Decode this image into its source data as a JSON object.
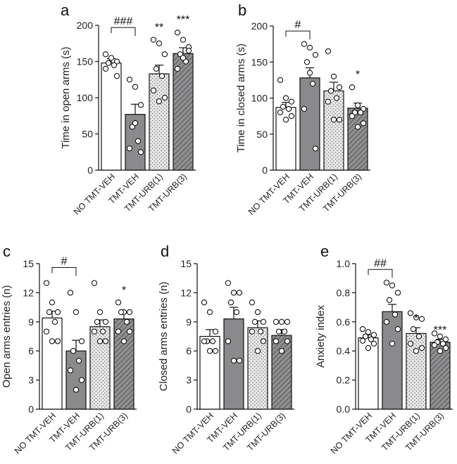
{
  "colors": {
    "open": "#ffffff",
    "gray": "#8a8a8c",
    "dotted": "#e6e6e6",
    "hatched": "#8f8f91",
    "ink": "#111111"
  },
  "chart_data": [
    {
      "type": "bar",
      "panel": "a",
      "ylabel": "Time in open arms (s)",
      "categories": [
        "NO TMT-VEH",
        "TMT-VEH",
        "TMT-URB(1)",
        "TMT-URB(3)"
      ],
      "values": [
        148,
        77,
        133,
        161
      ],
      "errors": [
        6,
        14,
        12,
        8
      ],
      "points": [
        [
          160,
          155,
          150,
          148,
          145,
          140,
          130
        ],
        [
          125,
          115,
          90,
          60,
          40,
          30,
          25,
          65
        ],
        [
          180,
          175,
          160,
          140,
          130,
          110,
          100,
          95
        ],
        [
          190,
          180,
          170,
          160,
          150,
          140,
          165,
          155
        ]
      ],
      "ylim": [
        0,
        200
      ],
      "yticks": [
        0,
        50,
        100,
        150,
        200
      ],
      "significance": [
        {
          "text": "###",
          "type": "bracket",
          "from": 0,
          "to": 1,
          "y": 197
        },
        {
          "text": "**",
          "bar": 2,
          "y": 192
        },
        {
          "text": "***",
          "bar": 3,
          "y": 203
        }
      ]
    },
    {
      "type": "bar",
      "panel": "b",
      "ylabel": "Time in closed arms (s)",
      "categories": [
        "NO TMT-VEH",
        "TMT-VEH",
        "TMT-URB(1)",
        "TMT-URB(3)"
      ],
      "values": [
        87,
        128,
        110,
        86
      ],
      "errors": [
        7,
        14,
        12,
        7
      ],
      "points": [
        [
          125,
          100,
          95,
          88,
          85,
          80,
          75,
          70
        ],
        [
          175,
          170,
          160,
          150,
          120,
          85,
          30,
          135
        ],
        [
          165,
          130,
          115,
          110,
          100,
          95,
          70,
          70
        ],
        [
          115,
          90,
          85,
          80,
          80,
          75,
          65,
          60
        ]
      ],
      "ylim": [
        0,
        200
      ],
      "yticks": [
        0,
        50,
        100,
        150,
        200
      ],
      "significance": [
        {
          "text": "#",
          "type": "bracket",
          "from": 0,
          "to": 1,
          "y": 193
        },
        {
          "text": "*",
          "bar": 3,
          "y": 128
        }
      ]
    },
    {
      "type": "bar",
      "panel": "c",
      "ylabel": "Open arms entries (n)",
      "categories": [
        "NO TMT-VEH",
        "TMT-VEH",
        "TMT-URB(1)",
        "TMT-URB(3)"
      ],
      "values": [
        9.4,
        6.0,
        8.5,
        9.3
      ],
      "errors": [
        0.7,
        1.1,
        0.7,
        0.6
      ],
      "points": [
        [
          13,
          11,
          10,
          10,
          9,
          8,
          7,
          7
        ],
        [
          12,
          10,
          7,
          6,
          5,
          4,
          3,
          2
        ],
        [
          13,
          10,
          9,
          9,
          8,
          8,
          7,
          7
        ],
        [
          11,
          10,
          10,
          10,
          9,
          8,
          8,
          7
        ]
      ],
      "ylim": [
        0,
        15
      ],
      "yticks": [
        0,
        3,
        6,
        9,
        12,
        15
      ],
      "significance": [
        {
          "text": "#",
          "type": "bracket",
          "from": 0,
          "to": 1,
          "y": 14.6
        },
        {
          "text": "*",
          "bar": 3,
          "y": 11.9
        }
      ]
    },
    {
      "type": "bar",
      "panel": "d",
      "ylabel": "Closed arms entries (n)",
      "categories": [
        "NO TMT-VEH",
        "TMT-VEH",
        "TMT-URB(1)",
        "TMT-URB(3)"
      ],
      "values": [
        7.5,
        9.3,
        8.4,
        7.6
      ],
      "errors": [
        0.7,
        1.2,
        0.7,
        0.6
      ],
      "points": [
        [
          11,
          10,
          8,
          7,
          7,
          7,
          6,
          6
        ],
        [
          13,
          12,
          12,
          11,
          10,
          7,
          5,
          5
        ],
        [
          11,
          10,
          9,
          9,
          8,
          8,
          7,
          6
        ],
        [
          9,
          9,
          9,
          8,
          8,
          7,
          7,
          6
        ]
      ],
      "ylim": [
        0,
        15
      ],
      "yticks": [
        0,
        3,
        6,
        9,
        12,
        15
      ],
      "significance": []
    },
    {
      "type": "bar",
      "panel": "e",
      "ylabel": "Anxiety index",
      "categories": [
        "NO TMT-VEH",
        "TMT-VEH",
        "TMT-URB(1)",
        "TMT-URB(3)"
      ],
      "values": [
        0.49,
        0.67,
        0.52,
        0.46
      ],
      "errors": [
        0.02,
        0.05,
        0.04,
        0.02
      ],
      "points": [
        [
          0.55,
          0.53,
          0.51,
          0.5,
          0.48,
          0.47,
          0.45,
          0.42
        ],
        [
          0.87,
          0.85,
          0.8,
          0.75,
          0.65,
          0.6,
          0.55,
          0.45
        ],
        [
          0.66,
          0.63,
          0.62,
          0.55,
          0.5,
          0.45,
          0.42,
          0.4
        ],
        [
          0.52,
          0.5,
          0.48,
          0.46,
          0.45,
          0.44,
          0.42,
          0.4
        ]
      ],
      "ylim": [
        0,
        1.0
      ],
      "yticks": [
        0.0,
        0.2,
        0.4,
        0.6,
        0.8,
        1.0
      ],
      "significance": [
        {
          "text": "##",
          "type": "bracket",
          "from": 0,
          "to": 1,
          "y": 0.96
        },
        {
          "text": "*",
          "bar": 2,
          "y": 0.6
        },
        {
          "text": "***",
          "bar": 3,
          "y": 0.52
        }
      ]
    }
  ]
}
